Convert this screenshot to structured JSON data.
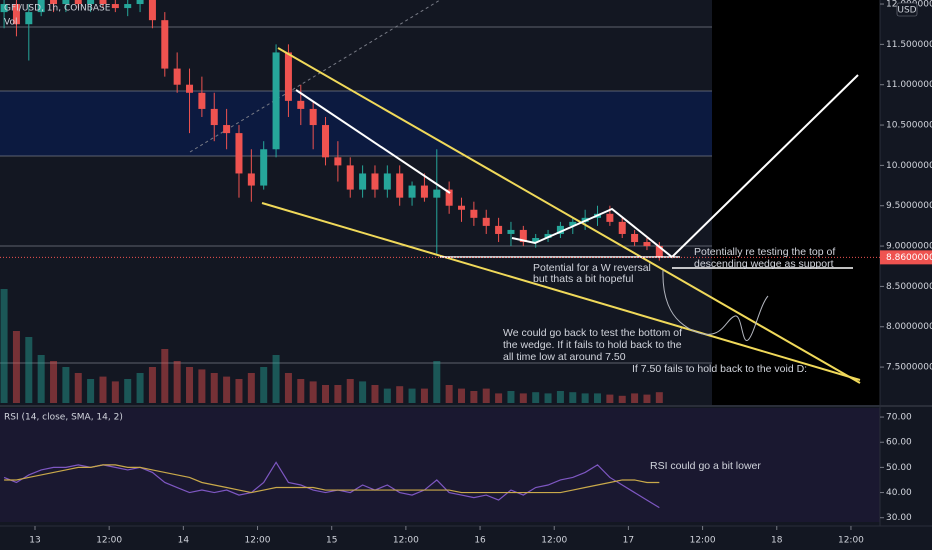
{
  "chart_data": [
    {
      "type": "candlestick",
      "title": "GFI/USD, 1h, COINBASE",
      "currency": "USD",
      "x": [
        -5,
        -3,
        -1,
        1,
        3,
        5,
        7,
        9,
        11,
        13,
        15,
        17,
        19,
        21,
        23,
        25,
        27,
        29,
        31,
        33,
        35,
        37,
        39,
        41,
        43,
        45,
        47,
        49,
        51,
        53,
        55,
        57,
        59,
        61,
        63,
        65,
        67,
        69,
        71,
        73,
        75,
        77,
        79,
        81,
        83,
        85,
        87,
        89,
        91,
        93,
        95,
        97,
        99,
        101
      ],
      "open": [
        11.9,
        12.0,
        11.75,
        11.9,
        12.05,
        12.0,
        12.05,
        12.0,
        12.05,
        12.0,
        11.95,
        12.0,
        12.05,
        11.8,
        11.2,
        11.0,
        10.9,
        10.7,
        10.5,
        10.4,
        9.9,
        9.75,
        10.2,
        11.4,
        10.8,
        10.7,
        10.5,
        10.1,
        10.0,
        9.7,
        9.9,
        9.7,
        9.9,
        9.6,
        9.75,
        9.6,
        9.7,
        9.5,
        9.45,
        9.35,
        9.25,
        9.15,
        9.2,
        9.05,
        9.1,
        9.15,
        9.25,
        9.3,
        9.35,
        9.4,
        9.3,
        9.15,
        9.05,
        9.0
      ],
      "high": [
        12.1,
        12.1,
        12.0,
        12.1,
        12.1,
        12.1,
        12.1,
        12.1,
        12.1,
        12.1,
        12.1,
        12.1,
        12.1,
        11.9,
        11.4,
        11.2,
        11.1,
        10.9,
        10.7,
        10.5,
        10.2,
        10.3,
        11.5,
        11.5,
        11.0,
        10.8,
        10.6,
        10.3,
        10.1,
        10.0,
        10.0,
        10.0,
        10.0,
        9.8,
        9.9,
        10.2,
        9.8,
        9.6,
        9.55,
        9.45,
        9.35,
        9.3,
        9.25,
        9.15,
        9.2,
        9.3,
        9.35,
        9.45,
        9.5,
        9.5,
        9.35,
        9.2,
        9.1,
        9.05
      ],
      "low": [
        11.7,
        11.6,
        11.3,
        11.85,
        11.9,
        11.9,
        11.95,
        11.9,
        11.95,
        11.9,
        11.85,
        11.9,
        11.7,
        11.1,
        10.9,
        10.4,
        10.6,
        10.3,
        10.2,
        9.6,
        9.55,
        9.7,
        10.1,
        10.6,
        10.5,
        10.2,
        10.0,
        9.8,
        9.6,
        9.6,
        9.6,
        9.6,
        9.5,
        9.5,
        9.55,
        8.9,
        9.4,
        9.3,
        9.25,
        9.15,
        9.05,
        9.0,
        9.0,
        8.98,
        9.05,
        9.1,
        9.15,
        9.2,
        9.25,
        9.25,
        9.1,
        9.0,
        8.95,
        8.82
      ],
      "close": [
        12.0,
        11.75,
        11.9,
        12.05,
        12.0,
        12.05,
        12.0,
        12.05,
        12.0,
        11.95,
        12.0,
        12.05,
        11.8,
        11.2,
        11.0,
        10.9,
        10.7,
        10.5,
        10.4,
        9.9,
        9.75,
        10.2,
        11.4,
        10.8,
        10.7,
        10.5,
        10.1,
        10.0,
        9.7,
        9.9,
        9.7,
        9.9,
        9.6,
        9.75,
        9.6,
        9.7,
        9.5,
        9.45,
        9.35,
        9.25,
        9.15,
        9.2,
        9.05,
        9.1,
        9.15,
        9.25,
        9.3,
        9.35,
        9.4,
        9.3,
        9.15,
        9.05,
        9.0,
        8.86
      ],
      "up_color": "#26a69a",
      "down_color": "#ef5350",
      "volume": {
        "label": "Vol",
        "vlim": [
          0,
          100
        ],
        "values": [
          95,
          60,
          55,
          40,
          35,
          30,
          25,
          20,
          22,
          18,
          20,
          25,
          30,
          45,
          35,
          30,
          28,
          25,
          22,
          20,
          25,
          30,
          40,
          25,
          20,
          18,
          15,
          15,
          20,
          18,
          15,
          12,
          14,
          12,
          12,
          35,
          15,
          12,
          10,
          12,
          8,
          10,
          8,
          9,
          8,
          10,
          9,
          8,
          8,
          7,
          6,
          8,
          7,
          9
        ]
      },
      "last_price": {
        "value": 8.86,
        "label": "8.86000000"
      },
      "xlim": [
        -5.66,
        136.7
      ],
      "xticks": [
        {
          "value": 0,
          "label": "13"
        },
        {
          "value": 12,
          "label": "12:00"
        },
        {
          "value": 24,
          "label": "14"
        },
        {
          "value": 36,
          "label": "12:00"
        },
        {
          "value": 48,
          "label": "15"
        },
        {
          "value": 60,
          "label": "12:00"
        },
        {
          "value": 72,
          "label": "16"
        },
        {
          "value": 84,
          "label": "12:00"
        },
        {
          "value": 96,
          "label": "17"
        },
        {
          "value": 108,
          "label": "12:00"
        },
        {
          "value": 120,
          "label": "18"
        },
        {
          "value": 132,
          "label": "12:00"
        }
      ],
      "ylim": [
        7.03,
        12.05
      ],
      "yticks": [
        {
          "value": 12,
          "label": "12.00000000"
        },
        {
          "value": 11.5,
          "label": "11.50000000"
        },
        {
          "value": 11,
          "label": "11.00000000"
        },
        {
          "value": 10.5,
          "label": "10.50000000"
        },
        {
          "value": 10,
          "label": "10.00000000"
        },
        {
          "value": 9.5,
          "label": "9.50000000"
        },
        {
          "value": 9,
          "label": "9.00000000"
        },
        {
          "value": 8.5,
          "label": "8.50000000"
        },
        {
          "value": 8,
          "label": "8.00000000"
        },
        {
          "value": 7.5,
          "label": "7.50000000"
        }
      ],
      "annotations": [
        "Potentially re testing the top of",
        "descending wedge as support",
        "Potential for a W reversal",
        "but thats a bit hopeful",
        "We could go back to test the bottom of",
        "the wedge. If it fails to hold back to the",
        "all time low at around 7.50",
        "If 7.50 fails to hold back to the void D:"
      ]
    },
    {
      "type": "line",
      "title": "RSI (14, close, SMA, 14, 2)",
      "series": [
        {
          "color": "#7e57c2",
          "values": [
            46,
            44,
            47,
            49,
            50,
            50,
            51,
            50,
            51,
            50,
            49,
            50,
            48,
            44,
            42,
            40,
            41,
            40,
            41,
            39,
            40,
            44,
            52,
            44,
            43,
            41,
            40,
            41,
            40,
            43,
            41,
            43,
            40,
            39,
            41,
            45,
            40,
            39,
            38,
            39,
            37,
            41,
            39,
            42,
            43,
            45,
            46,
            48,
            51,
            46,
            43,
            40,
            37,
            34
          ]
        },
        {
          "color": "#c9a94a",
          "values": [
            45,
            45,
            46,
            47,
            48,
            49,
            50,
            50,
            51,
            51,
            50,
            50,
            49,
            48,
            47,
            46,
            44,
            43,
            42,
            41,
            40,
            41,
            42,
            42,
            42,
            42,
            41,
            41,
            41,
            41,
            41,
            41,
            41,
            41,
            41,
            41,
            41,
            40,
            40,
            40,
            40,
            40,
            40,
            40,
            40,
            40,
            41,
            42,
            43,
            44,
            45,
            45,
            44,
            44
          ]
        }
      ],
      "ylim": [
        28.3,
        73.6
      ],
      "yticks": [
        {
          "value": 70,
          "label": "70.00"
        },
        {
          "value": 60,
          "label": "60.00"
        },
        {
          "value": 50,
          "label": "50.00"
        },
        {
          "value": 40,
          "label": "40.00"
        },
        {
          "value": 30,
          "label": "30.00"
        }
      ],
      "annotation": "RSI could go a bit lower"
    }
  ]
}
